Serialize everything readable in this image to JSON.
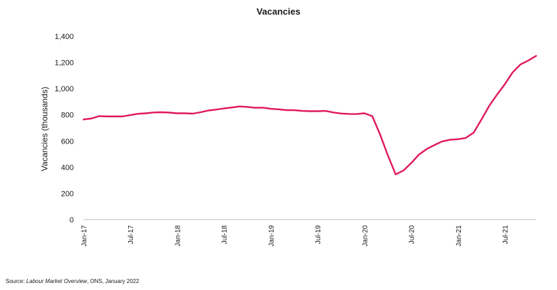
{
  "chart_data": {
    "type": "line",
    "title": "Vacancies",
    "xlabel": "",
    "ylabel": "Vacancies (thousands)",
    "ylim": [
      0,
      1400
    ],
    "yticks": [
      "0",
      "200",
      "400",
      "600",
      "800",
      "1,000",
      "1,200",
      "1,400"
    ],
    "grid": false,
    "legend": "none",
    "line_color": "#e0195a",
    "x_tick_labels": [
      {
        "index": 0,
        "label": "Jan-17"
      },
      {
        "index": 6,
        "label": "Jul-17"
      },
      {
        "index": 12,
        "label": "Jan-18"
      },
      {
        "index": 18,
        "label": "Jul-18"
      },
      {
        "index": 24,
        "label": "Jan-19"
      },
      {
        "index": 30,
        "label": "Jul-19"
      },
      {
        "index": 36,
        "label": "Jan-20"
      },
      {
        "index": 42,
        "label": "Jul-20"
      },
      {
        "index": 48,
        "label": "Jan-21"
      },
      {
        "index": 54,
        "label": "Jul-21"
      }
    ],
    "series": [
      {
        "values": [
          765,
          772,
          790,
          788,
          788,
          788,
          798,
          808,
          812,
          818,
          820,
          817,
          812,
          812,
          809,
          820,
          833,
          840,
          849,
          856,
          864,
          860,
          854,
          855,
          846,
          842,
          836,
          836,
          830,
          828,
          828,
          830,
          818,
          810,
          807,
          806,
          812,
          790,
          650,
          490,
          345,
          375,
          432,
          497,
          540,
          570,
          598,
          610,
          614,
          624,
          664,
          765,
          870,
          955,
          1035,
          1125,
          1185,
          1215,
          1250
        ]
      }
    ]
  },
  "source": {
    "prefix": "Source: ",
    "publication": "Labour Market Overview",
    "suffix": ", ONS, January 2022"
  }
}
